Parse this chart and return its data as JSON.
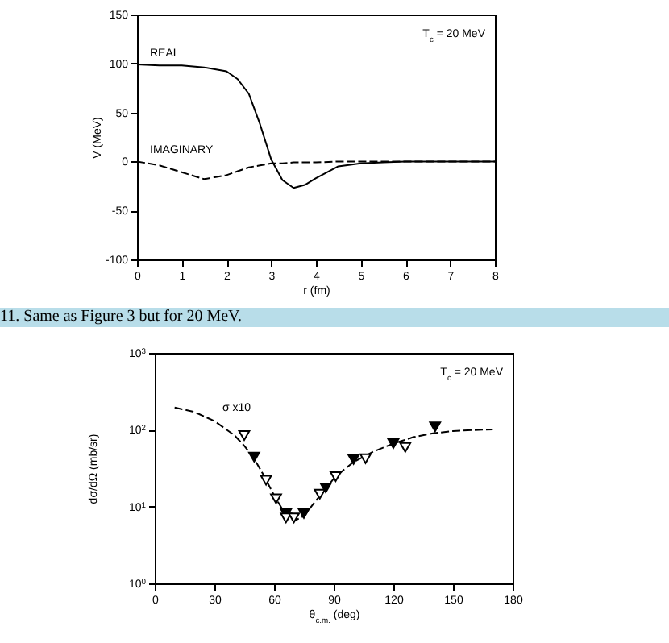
{
  "chart_data": [
    {
      "type": "line",
      "xlabel": "r (fm)",
      "ylabel": "V (MeV)",
      "xlim": [
        0,
        8
      ],
      "xticks": [
        0,
        1,
        2,
        3,
        4,
        5,
        6,
        7,
        8
      ],
      "ylim": [
        -100,
        150
      ],
      "yticks": [
        -100,
        -50,
        0,
        50,
        100,
        150
      ],
      "grid": false,
      "x": [
        0,
        0.5,
        1,
        1.5,
        2,
        2.25,
        2.5,
        2.75,
        3,
        3.25,
        3.5,
        3.75,
        4,
        4.5,
        5,
        5.5,
        6,
        7,
        8
      ],
      "series": [
        {
          "name": "REAL",
          "color": "#000000",
          "line_style": "solid",
          "values": [
            99,
            98,
            98,
            96,
            92,
            84,
            69,
            38,
            2,
            -19,
            -27,
            -24,
            -17,
            -5,
            -2,
            -1,
            0,
            0,
            0
          ]
        },
        {
          "name": "IMAGINARY",
          "color": "#000000",
          "line_style": "dashed",
          "values": [
            0,
            -4,
            -11,
            -18,
            -14,
            -10,
            -6,
            -4,
            -2,
            -2,
            -1,
            -1,
            -1,
            0,
            0,
            0,
            0,
            0,
            0
          ]
        }
      ],
      "annotations": [
        "T$_{c}$ = 20 MeV"
      ]
    },
    {
      "type": "scatter",
      "title": "11. Same as Figure 3 but for 20 MeV.",
      "xlabel": "θ$_{c.m.}$ (deg)",
      "ylabel": "dσ/dΩ (mb/sr)",
      "log": "y",
      "xlim": [
        0,
        180
      ],
      "xticks": [
        0,
        30,
        60,
        90,
        120,
        150,
        180
      ],
      "ylim": [
        1,
        1000
      ],
      "yticks": [
        {
          "value": 1,
          "label": "10$^{0}$"
        },
        {
          "value": 10,
          "label": "10$^{1}$"
        },
        {
          "value": 100,
          "label": "10$^{2}$"
        },
        {
          "value": 1000,
          "label": "10$^{3}$"
        }
      ],
      "grid": false,
      "series": [
        {
          "type": "line",
          "color": "#000000",
          "line_style": "dashed",
          "x": [
            10,
            20,
            30,
            40,
            45,
            50,
            55,
            60,
            65,
            70,
            75,
            80,
            85,
            90,
            95,
            100,
            110,
            120,
            130,
            140,
            150,
            160,
            170
          ],
          "values": [
            195,
            170,
            130,
            85,
            62,
            42,
            25,
            14,
            8.5,
            6.5,
            7.5,
            11,
            16,
            23,
            30,
            38,
            52,
            66,
            80,
            90,
            96,
            99,
            101
          ]
        },
        {
          "color": "#000000",
          "marker": "triangle",
          "x": [
            50,
            66,
            75,
            86,
            100,
            120,
            141
          ],
          "values": [
            44,
            8.1,
            8.1,
            17.5,
            41,
            66,
            109
          ]
        },
        {
          "color": "#ffffff",
          "marker": "triangle",
          "x": [
            45,
            56,
            61,
            66,
            70,
            83,
            91,
            106,
            126
          ],
          "values": [
            84,
            22,
            12.6,
            7.1,
            7.1,
            14.5,
            24.6,
            42,
            59
          ]
        }
      ],
      "annotations": [
        "T$_{c}$ = 20 MeV",
        "σ x10"
      ]
    }
  ]
}
